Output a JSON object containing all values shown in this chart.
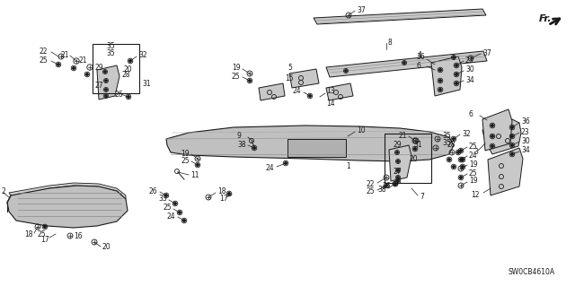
{
  "bg_color": "#ffffff",
  "diagram_code": "SW0CB4610A",
  "line_color": "#1a1a1a",
  "fill_color": "#d8d8d8",
  "fill_dark": "#b0b0b0"
}
